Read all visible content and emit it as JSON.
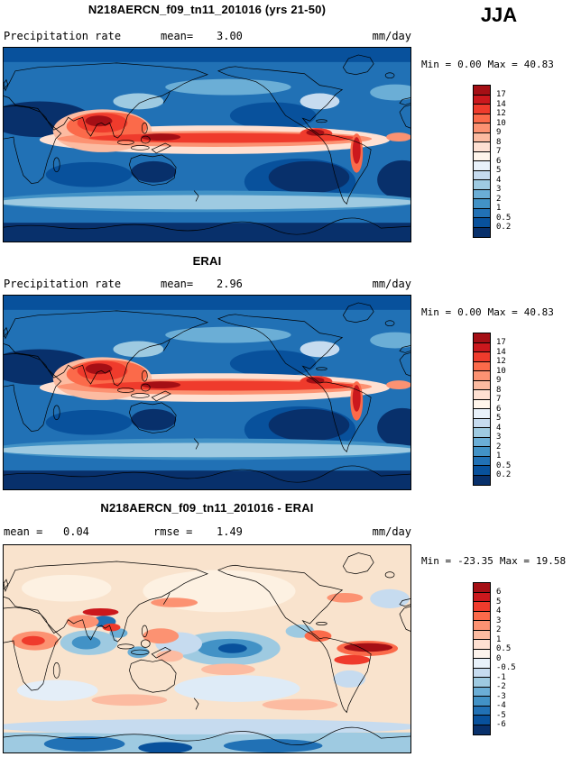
{
  "season": "JJA",
  "panels": [
    {
      "title": "N218AERCN_f09_tn11_201016 (yrs 21-50)",
      "field_label": "Precipitation rate",
      "mean_label": "mean=",
      "mean_value": "3.00",
      "units": "mm/day",
      "min_label": "Min =",
      "min_value": "0.00",
      "max_label": "Max =",
      "max_value": "40.83",
      "colorbar": {
        "labels": [
          "17",
          "14",
          "12",
          "10",
          "9",
          "8",
          "7",
          "6",
          "5",
          "4",
          "3",
          "2",
          "1",
          "0.5",
          "0.2"
        ],
        "colors": [
          "#a50f15",
          "#cb181d",
          "#ef3b2c",
          "#fb6a4a",
          "#fc9272",
          "#fcbba1",
          "#fee0d2",
          "#fff5eb",
          "#e8f1fa",
          "#c6dbef",
          "#9ecae1",
          "#6baed6",
          "#4292c6",
          "#2171b5",
          "#08519c",
          "#08306b"
        ]
      }
    },
    {
      "title": "ERAI",
      "field_label": "Precipitation rate",
      "mean_label": "mean=",
      "mean_value": "2.96",
      "units": "mm/day",
      "min_label": "Min =",
      "min_value": "0.00",
      "max_label": "Max =",
      "max_value": "40.83",
      "colorbar": {
        "labels": [
          "17",
          "14",
          "12",
          "10",
          "9",
          "8",
          "7",
          "6",
          "5",
          "4",
          "3",
          "2",
          "1",
          "0.5",
          "0.2"
        ],
        "colors": [
          "#a50f15",
          "#cb181d",
          "#ef3b2c",
          "#fb6a4a",
          "#fc9272",
          "#fcbba1",
          "#fee0d2",
          "#fff5eb",
          "#e8f1fa",
          "#c6dbef",
          "#9ecae1",
          "#6baed6",
          "#4292c6",
          "#2171b5",
          "#08519c",
          "#08306b"
        ]
      }
    },
    {
      "title": "N218AERCN_f09_tn11_201016 - ERAI",
      "mean_label": "mean =",
      "mean_value": "0.04",
      "rmse_label": "rmse =",
      "rmse_value": "1.49",
      "units": "mm/day",
      "min_label": "Min =",
      "min_value": "-23.35",
      "max_label": "Max =",
      "max_value": "19.58",
      "colorbar": {
        "labels": [
          "6",
          "5",
          "4",
          "3",
          "2",
          "1",
          "0.5",
          "0",
          "-0.5",
          "-1",
          "-2",
          "-3",
          "-4",
          "-5",
          "-6"
        ],
        "colors": [
          "#a50f15",
          "#cb181d",
          "#ef3b2c",
          "#fb6a4a",
          "#fc9272",
          "#fcbba1",
          "#fee0d2",
          "#fdf3ec",
          "#e8f1fa",
          "#c6dbef",
          "#9ecae1",
          "#6baed6",
          "#4292c6",
          "#2171b5",
          "#08519c",
          "#08306b"
        ]
      }
    }
  ],
  "chart_data": [
    {
      "type": "heatmap",
      "title": "N218AERCN_f09_tn11_201016 (yrs 21-50)",
      "season": "JJA",
      "variable": "Precipitation rate",
      "units": "mm/day",
      "mean": 3.0,
      "min": 0.0,
      "max": 40.83,
      "contour_levels": [
        0.2,
        0.5,
        1,
        2,
        3,
        4,
        5,
        6,
        7,
        8,
        9,
        10,
        12,
        14,
        17
      ],
      "projection": "global lat-lon, lon 0-360, colorbar right, blue=low red=high"
    },
    {
      "type": "heatmap",
      "title": "ERAI",
      "season": "JJA",
      "variable": "Precipitation rate",
      "units": "mm/day",
      "mean": 2.96,
      "min": 0.0,
      "max": 40.83,
      "contour_levels": [
        0.2,
        0.5,
        1,
        2,
        3,
        4,
        5,
        6,
        7,
        8,
        9,
        10,
        12,
        14,
        17
      ],
      "projection": "global lat-lon, lon 0-360, colorbar right, blue=low red=high"
    },
    {
      "type": "heatmap",
      "title": "N218AERCN_f09_tn11_201016 - ERAI",
      "season": "JJA",
      "variable": "Precipitation rate difference",
      "units": "mm/day",
      "mean": 0.04,
      "rmse": 1.49,
      "min": -23.35,
      "max": 19.58,
      "contour_levels": [
        -6,
        -5,
        -4,
        -3,
        -2,
        -1,
        -0.5,
        0,
        0.5,
        1,
        2,
        3,
        4,
        5,
        6
      ],
      "projection": "global lat-lon, lon 0-360, colorbar right, blue=negative red=positive"
    }
  ]
}
